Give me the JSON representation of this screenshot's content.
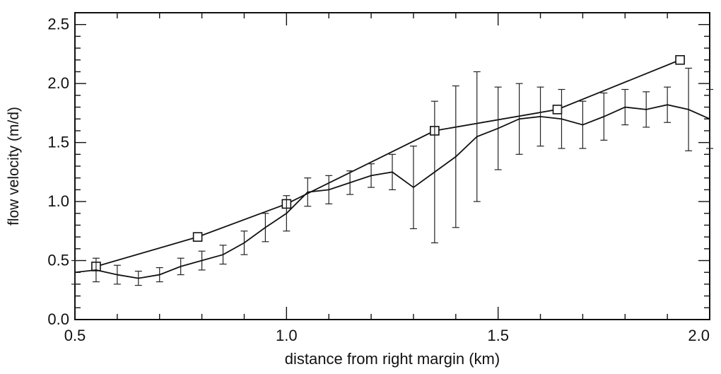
{
  "chart_data": {
    "type": "line",
    "title": "",
    "xlabel": "distance from right margin (km)",
    "ylabel": "flow velocity (m/d)",
    "xlim": [
      0.5,
      2.0
    ],
    "ylim": [
      0.0,
      2.6
    ],
    "x_ticks": [
      0.5,
      1.0,
      1.5,
      2.0
    ],
    "x_tick_labels": [
      "0.5",
      "1.0",
      "1.5",
      "2.0"
    ],
    "y_ticks": [
      0.0,
      0.5,
      1.0,
      1.5,
      2.0,
      2.5
    ],
    "y_tick_labels": [
      "0.0",
      "0.5",
      "1.0",
      "1.5",
      "2.0",
      "2.5"
    ],
    "grid": false,
    "legend": "none",
    "series": [
      {
        "marker": "square",
        "line": "solid",
        "x": [
          0.55,
          0.79,
          1.0,
          1.35,
          1.64,
          1.93
        ],
        "y": [
          0.45,
          0.7,
          0.98,
          1.6,
          1.78,
          2.2
        ],
        "error": [
          0,
          0,
          0,
          0,
          0,
          0
        ]
      },
      {
        "marker": "none",
        "line": "solid",
        "errorbars": true,
        "x": [
          0.5,
          0.55,
          0.6,
          0.65,
          0.7,
          0.75,
          0.8,
          0.85,
          0.9,
          0.95,
          1.0,
          1.05,
          1.1,
          1.15,
          1.2,
          1.25,
          1.3,
          1.35,
          1.4,
          1.45,
          1.5,
          1.55,
          1.6,
          1.65,
          1.7,
          1.75,
          1.8,
          1.85,
          1.9,
          1.95,
          2.0
        ],
        "y": [
          0.4,
          0.42,
          0.38,
          0.35,
          0.38,
          0.45,
          0.5,
          0.55,
          0.65,
          0.78,
          0.9,
          1.08,
          1.1,
          1.16,
          1.22,
          1.25,
          1.12,
          1.25,
          1.38,
          1.55,
          1.62,
          1.7,
          1.72,
          1.7,
          1.65,
          1.72,
          1.8,
          1.78,
          1.82,
          1.78,
          1.7
        ],
        "error": [
          0.1,
          0.1,
          0.08,
          0.06,
          0.06,
          0.07,
          0.08,
          0.08,
          0.1,
          0.12,
          0.15,
          0.12,
          0.12,
          0.1,
          0.1,
          0.15,
          0.35,
          0.6,
          0.6,
          0.55,
          0.35,
          0.3,
          0.25,
          0.25,
          0.2,
          0.2,
          0.15,
          0.15,
          0.15,
          0.35,
          0.25
        ]
      }
    ]
  }
}
